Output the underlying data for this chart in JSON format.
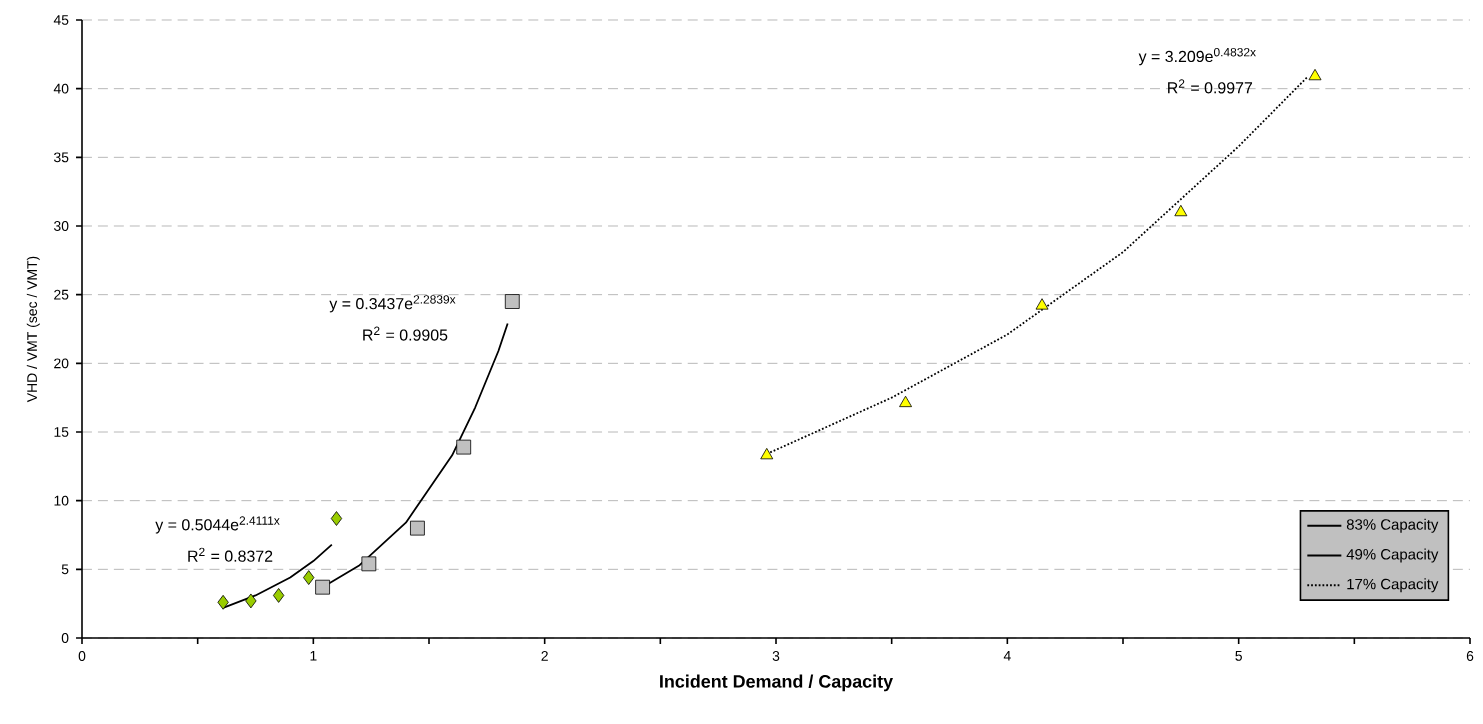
{
  "chart_data": {
    "type": "scatter",
    "xlabel": "**Incident Demand / Capacity**",
    "ylabel": "VHD / VMT (sec / VMT)",
    "xlim": [
      0,
      6
    ],
    "xticks": [
      0,
      {
        "value": 0.5,
        "label": null
      },
      1,
      {
        "value": 1.5,
        "label": null
      },
      2,
      {
        "value": 2.5,
        "label": null
      },
      3,
      {
        "value": 3.5,
        "label": null
      },
      4,
      {
        "value": 4.5,
        "label": null
      },
      5,
      {
        "value": 5.5,
        "label": null
      },
      6
    ],
    "ylim": [
      0,
      45
    ],
    "yticks": [
      0,
      5,
      10,
      15,
      20,
      25,
      30,
      35,
      40,
      45
    ],
    "grid": "y",
    "legend": "bottom right",
    "series": [
      {
        "marker": "diamond",
        "color": "#99cc00",
        "x": [
          0.61,
          0.73,
          0.85,
          0.98,
          1.1
        ],
        "values": [
          2.6,
          2.7,
          3.1,
          4.4,
          8.7
        ]
      },
      {
        "marker": "square",
        "color": "#c0c0c0",
        "x": [
          1.04,
          1.24,
          1.45,
          1.65,
          1.86
        ],
        "values": [
          3.7,
          5.4,
          8.0,
          13.9,
          24.5
        ]
      },
      {
        "marker": "triangle",
        "color": "#ffff00",
        "x": [
          2.96,
          3.56,
          4.15,
          4.75,
          5.33
        ],
        "values": [
          13.3,
          17.1,
          24.2,
          31.0,
          40.9
        ]
      },
      {
        "type": "line",
        "name": "83% Capacity",
        "color": "#000000",
        "line_style": "solid",
        "marker": "none",
        "x": [
          0.61,
          0.75,
          0.9,
          1.0,
          1.08
        ],
        "values": [
          2.2,
          3.1,
          4.4,
          5.6,
          6.8
        ]
      },
      {
        "type": "line",
        "name": "49% Capacity",
        "color": "#000000",
        "line_style": "solid",
        "marker": "none",
        "x": [
          1.04,
          1.2,
          1.4,
          1.6,
          1.7,
          1.8,
          1.84
        ],
        "values": [
          3.7,
          5.3,
          8.4,
          13.3,
          16.8,
          20.9,
          22.9
        ]
      },
      {
        "type": "line",
        "name": "17% Capacity",
        "color": "#000000",
        "line_style": "dotted",
        "marker": "none",
        "x": [
          2.96,
          3.5,
          4.0,
          4.5,
          5.0,
          5.3
        ],
        "values": [
          13.4,
          17.5,
          22.1,
          28.1,
          35.8,
          40.9
        ]
      }
    ],
    "annotations": [
      "y = 3.209e$^{0.4832x}$",
      "R$^{2}$ = 0.9977",
      "y = 0.3437e$^{2.2839x}$",
      "R$^{2}$ = 0.9905",
      "y = 0.5044e$^{2.4111x}$",
      "R$^{2}$ = 0.8372"
    ]
  }
}
